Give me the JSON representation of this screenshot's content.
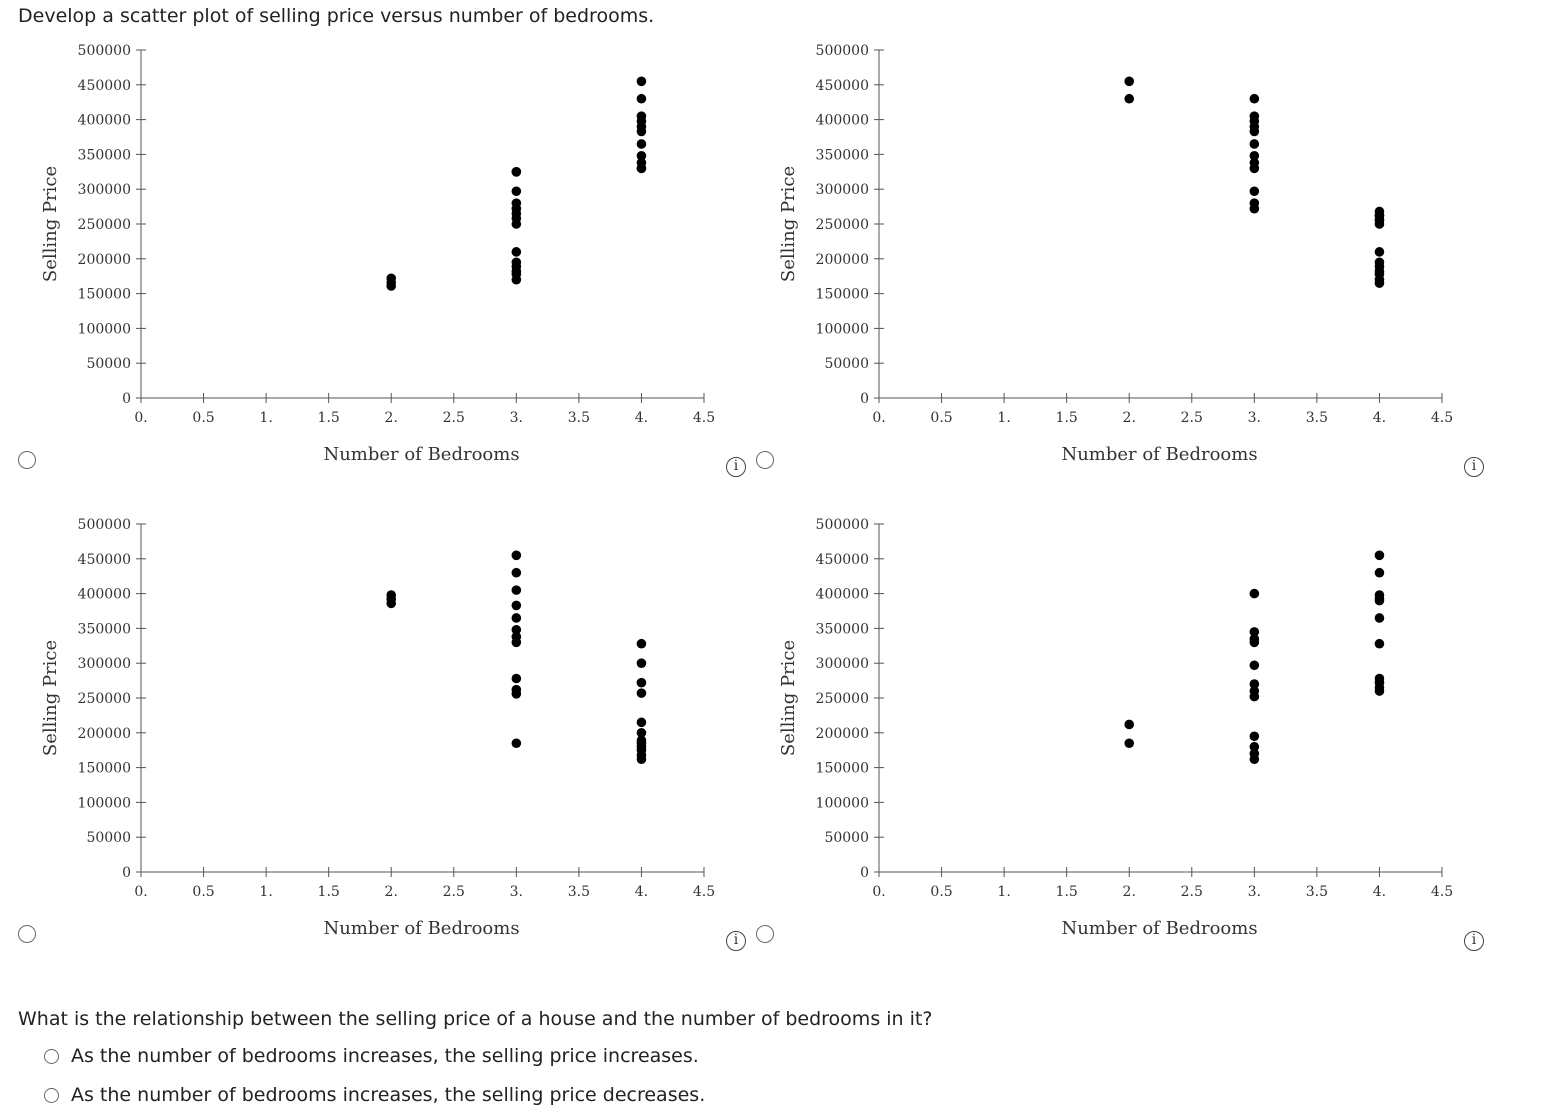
{
  "prompt": "Develop a scatter plot of selling price versus number of bedrooms.",
  "chart_data": [
    {
      "type": "scatter",
      "option": "A",
      "xlabel": "Number of Bedrooms",
      "ylabel": "Selling Price",
      "xlim": [
        0,
        4.5
      ],
      "ylim": [
        0,
        500000
      ],
      "xticks": [
        "0.",
        "0.5",
        "1.",
        "1.5",
        "2.",
        "2.5",
        "3.",
        "3.5",
        "4.",
        "4.5"
      ],
      "yticks": [
        "0",
        "50000",
        "100000",
        "150000",
        "200000",
        "250000",
        "300000",
        "350000",
        "400000",
        "450000",
        "500000"
      ],
      "x": [
        2,
        2,
        2,
        3,
        3,
        3,
        3,
        3,
        3,
        3,
        3,
        3,
        3,
        3,
        3,
        3,
        3,
        4,
        4,
        4,
        4,
        4,
        4,
        4,
        4,
        4,
        4,
        4
      ],
      "y": [
        172000,
        166000,
        161000,
        325000,
        297000,
        280000,
        272000,
        265000,
        258000,
        250000,
        210000,
        195000,
        189000,
        182000,
        178000,
        170000,
        325000,
        455000,
        430000,
        405000,
        398000,
        390000,
        383000,
        365000,
        348000,
        338000,
        330000,
        330000
      ]
    },
    {
      "type": "scatter",
      "option": "B",
      "xlabel": "Number of Bedrooms",
      "ylabel": "Selling Price",
      "xlim": [
        0,
        4.5
      ],
      "ylim": [
        0,
        500000
      ],
      "xticks": [
        "0.",
        "0.5",
        "1.",
        "1.5",
        "2.",
        "2.5",
        "3.",
        "3.5",
        "4.",
        "4.5"
      ],
      "yticks": [
        "0",
        "50000",
        "100000",
        "150000",
        "200000",
        "250000",
        "300000",
        "350000",
        "400000",
        "450000",
        "500000"
      ],
      "x": [
        2,
        2,
        3,
        3,
        3,
        3,
        3,
        3,
        3,
        3,
        3,
        3,
        3,
        3,
        4,
        4,
        4,
        4,
        4,
        4,
        4,
        4,
        4,
        4,
        4,
        4,
        4
      ],
      "y": [
        455000,
        430000,
        430000,
        405000,
        398000,
        390000,
        383000,
        365000,
        348000,
        338000,
        330000,
        297000,
        280000,
        272000,
        268000,
        262000,
        256000,
        250000,
        210000,
        195000,
        189000,
        182000,
        178000,
        170000,
        165000,
        262000,
        255000
      ]
    },
    {
      "type": "scatter",
      "option": "C",
      "xlabel": "Number of Bedrooms",
      "ylabel": "Selling Price",
      "xlim": [
        0,
        4.5
      ],
      "ylim": [
        0,
        500000
      ],
      "xticks": [
        "0.",
        "0.5",
        "1.",
        "1.5",
        "2.",
        "2.5",
        "3.",
        "3.5",
        "4.",
        "4.5"
      ],
      "yticks": [
        "0",
        "50000",
        "100000",
        "150000",
        "200000",
        "250000",
        "300000",
        "350000",
        "400000",
        "450000",
        "500000"
      ],
      "x": [
        2,
        2,
        2,
        3,
        3,
        3,
        3,
        3,
        3,
        3,
        3,
        3,
        3,
        3,
        3,
        4,
        4,
        4,
        4,
        4,
        4,
        4,
        4,
        4,
        4,
        4,
        4
      ],
      "y": [
        398000,
        392000,
        386000,
        455000,
        430000,
        405000,
        383000,
        365000,
        348000,
        338000,
        330000,
        278000,
        262000,
        256000,
        185000,
        328000,
        300000,
        272000,
        257000,
        215000,
        200000,
        189000,
        180000,
        175000,
        168000,
        162000,
        185000
      ]
    },
    {
      "type": "scatter",
      "option": "D",
      "xlabel": "Number of Bedrooms",
      "ylabel": "Selling Price",
      "xlim": [
        0,
        4.5
      ],
      "ylim": [
        0,
        500000
      ],
      "xticks": [
        "0.",
        "0.5",
        "1.",
        "1.5",
        "2.",
        "2.5",
        "3.",
        "3.5",
        "4.",
        "4.5"
      ],
      "yticks": [
        "0",
        "50000",
        "100000",
        "150000",
        "200000",
        "250000",
        "300000",
        "350000",
        "400000",
        "450000",
        "500000"
      ],
      "x": [
        2,
        2,
        3,
        3,
        3,
        3,
        3,
        3,
        3,
        3,
        3,
        3,
        3,
        3,
        4,
        4,
        4,
        4,
        4,
        4,
        4,
        4,
        4,
        4,
        4
      ],
      "y": [
        212000,
        185000,
        400000,
        345000,
        335000,
        330000,
        297000,
        270000,
        260000,
        252000,
        195000,
        180000,
        170000,
        162000,
        455000,
        430000,
        398000,
        390000,
        365000,
        328000,
        278000,
        272000,
        265000,
        260000,
        393000
      ]
    }
  ],
  "question": "What is the relationship between the selling price of a house and the number of bedrooms in it?",
  "answers": [
    "As the number of bedrooms increases, the selling price increases.",
    "As the number of bedrooms increases, the selling price decreases."
  ],
  "info_glyph": "i"
}
